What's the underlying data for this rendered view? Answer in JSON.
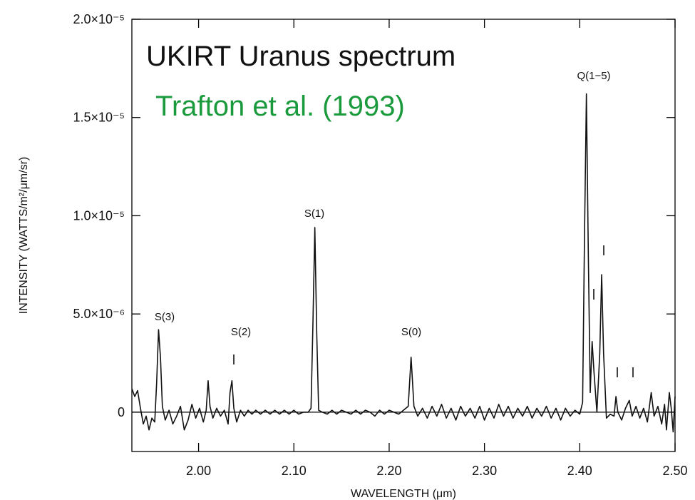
{
  "chart_data": {
    "type": "line",
    "title": "UKIRT Uranus spectrum",
    "subtitle": "Trafton et al. (1993)",
    "subtitle_color": "#1a9a3c",
    "xlabel": "WAVELENGTH  (μm)",
    "ylabel": "INTENSITY (WATTS/m²/μm/sr)",
    "annotations": [
      "S(3)",
      "S(2)",
      "S(1)",
      "S(0)",
      "Q(1−5)"
    ],
    "xlim": [
      1.93,
      2.5
    ],
    "ylim": [
      -2e-06,
      2e-05
    ],
    "xticks": [
      {
        "value": 2.0,
        "label": "2.00"
      },
      {
        "value": 2.1,
        "label": "2.10"
      },
      {
        "value": 2.2,
        "label": "2.20"
      },
      {
        "value": 2.3,
        "label": "2.30"
      },
      {
        "value": 2.4,
        "label": "2.40"
      },
      {
        "value": 2.5,
        "label": "2.50"
      }
    ],
    "yticks": [
      0,
      {
        "value": 5e-06,
        "label": "5.0×10⁻⁶"
      },
      {
        "value": 1e-05,
        "label": "1.0×10⁻⁵"
      },
      {
        "value": 1.5e-05,
        "label": "1.5×10⁻⁵"
      },
      {
        "value": 2e-05,
        "label": "2.0×10⁻⁵"
      }
    ],
    "series": [
      {
        "color": "#111111",
        "x": [
          1.93,
          1.933,
          1.936,
          1.939,
          1.942,
          1.945,
          1.948,
          1.951,
          1.954,
          1.956,
          1.958,
          1.96,
          1.962,
          1.965,
          1.969,
          1.973,
          1.977,
          1.981,
          1.985,
          1.989,
          1.993,
          1.997,
          2.001,
          2.005,
          2.008,
          2.01,
          2.012,
          2.015,
          2.019,
          2.023,
          2.027,
          2.031,
          2.033,
          2.035,
          2.037,
          2.04,
          2.044,
          2.048,
          2.052,
          2.056,
          2.06,
          2.065,
          2.07,
          2.075,
          2.08,
          2.085,
          2.09,
          2.095,
          2.1,
          2.105,
          2.11,
          2.115,
          2.118,
          2.12,
          2.122,
          2.124,
          2.126,
          2.13,
          2.135,
          2.14,
          2.145,
          2.15,
          2.155,
          2.16,
          2.165,
          2.17,
          2.175,
          2.18,
          2.185,
          2.19,
          2.195,
          2.2,
          2.205,
          2.21,
          2.215,
          2.22,
          2.223,
          2.226,
          2.23,
          2.235,
          2.24,
          2.245,
          2.25,
          2.255,
          2.26,
          2.265,
          2.27,
          2.275,
          2.28,
          2.285,
          2.29,
          2.295,
          2.3,
          2.305,
          2.31,
          2.315,
          2.32,
          2.325,
          2.33,
          2.335,
          2.34,
          2.345,
          2.35,
          2.355,
          2.36,
          2.365,
          2.37,
          2.375,
          2.38,
          2.385,
          2.39,
          2.395,
          2.4,
          2.403,
          2.405,
          2.407,
          2.409,
          2.411,
          2.413,
          2.415,
          2.418,
          2.421,
          2.423,
          2.425,
          2.428,
          2.432,
          2.436,
          2.438,
          2.44,
          2.444,
          2.448,
          2.452,
          2.455,
          2.459,
          2.463,
          2.467,
          2.471,
          2.475,
          2.478,
          2.482,
          2.486,
          2.489,
          2.491,
          2.494,
          2.496,
          2.498,
          2.5
        ],
        "values": [
          1.2e-06,
          8e-07,
          1.1e-06,
          2e-07,
          -6e-07,
          -2e-07,
          -9e-07,
          -3e-07,
          -5e-07,
          1.5e-06,
          4.2e-06,
          2.8e-06,
          3e-07,
          -4e-07,
          1e-07,
          -6e-07,
          -2e-07,
          3e-07,
          -9e-07,
          -4e-07,
          4e-07,
          -3e-07,
          2e-07,
          -5e-07,
          1e-07,
          1.6e-06,
          3e-07,
          -3e-07,
          2e-07,
          -2e-07,
          1e-07,
          -6e-07,
          1e-06,
          1.6e-06,
          2e-07,
          -5e-07,
          1e-07,
          -2e-07,
          1e-07,
          -1e-07,
          1e-07,
          -1e-07,
          1e-07,
          -1e-07,
          1e-07,
          -1e-07,
          1e-07,
          -1e-07,
          1e-07,
          -1e-07,
          0,
          0,
          2e-07,
          4.5e-06,
          9.4e-06,
          4e-06,
          1e-07,
          0,
          -1e-07,
          1e-07,
          -1e-07,
          1e-07,
          0,
          -1e-07,
          1e-07,
          -1e-07,
          1e-07,
          0,
          -2e-07,
          1e-07,
          -1e-07,
          1e-07,
          0,
          -1e-07,
          1e-07,
          3e-07,
          2.8e-06,
          3e-07,
          -2e-07,
          2e-07,
          -3e-07,
          3e-07,
          -2e-07,
          4e-07,
          -3e-07,
          2e-07,
          -4e-07,
          3e-07,
          -2e-07,
          2e-07,
          -3e-07,
          3e-07,
          -4e-07,
          2e-07,
          -3e-07,
          4e-07,
          -2e-07,
          3e-07,
          -3e-07,
          2e-07,
          -2e-07,
          3e-07,
          -3e-07,
          2e-07,
          -2e-07,
          3e-07,
          -3e-07,
          2e-07,
          -4e-07,
          2e-07,
          -2e-07,
          1e-07,
          -1e-07,
          5e-07,
          9e-06,
          1.62e-05,
          8e-06,
          1e-06,
          3.6e-06,
          2e-06,
          0,
          3e-06,
          7e-06,
          3e-06,
          -3e-07,
          -1e-07,
          -2e-07,
          8e-07,
          0,
          -4e-07,
          2e-07,
          6e-07,
          -2e-07,
          3e-07,
          -3e-07,
          2e-07,
          -5e-07,
          1e-06,
          -2e-07,
          3e-07,
          -6e-07,
          4e-07,
          -9e-07,
          1e-06,
          2e-07,
          -1e-06,
          8e-07
        ]
      }
    ]
  }
}
